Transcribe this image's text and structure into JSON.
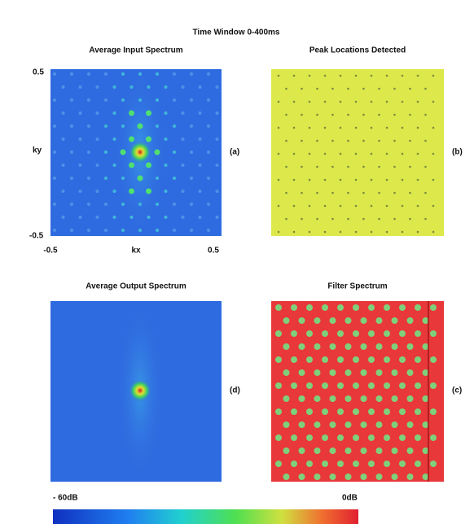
{
  "title": "Time Window 0-400ms",
  "panels": [
    {
      "title": "Average Input Spectrum",
      "tag": "(a)"
    },
    {
      "title": "Peak Locations Detected",
      "tag": "(b)"
    },
    {
      "title": "Average Output Spectrum",
      "tag": "(d)"
    },
    {
      "title": "Filter Spectrum",
      "tag": "(c)"
    }
  ],
  "axes": {
    "y_top": "0.5",
    "y_bottom": "-0.5",
    "y_label": "ky",
    "x_left": "-0.5",
    "x_label": "kx",
    "x_right": "0.5"
  },
  "colorbar": {
    "min_label": "- 60dB",
    "max_label": "0dB"
  }
}
